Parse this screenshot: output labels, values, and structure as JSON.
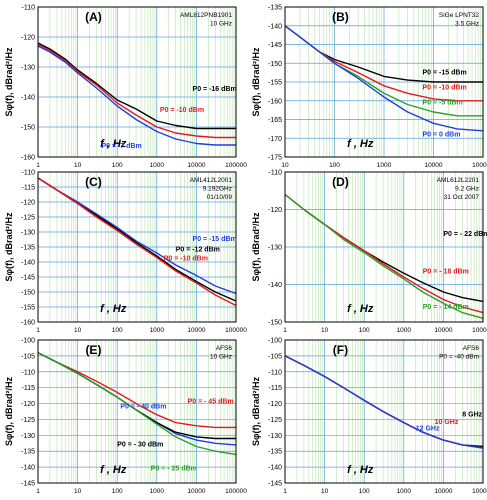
{
  "chart_data": [
    {
      "type": "line",
      "panel_label": "(A)",
      "info": [
        "AML812PNB1901",
        "10 GHz"
      ],
      "xlabel": "f , Hz",
      "ylabel": "Sφ(f), dBrad²/Hz",
      "x_scale": "log",
      "xlim": [
        1,
        100000
      ],
      "ylim": [
        -160,
        -110
      ],
      "yticks": [
        -160,
        -150,
        -140,
        -130,
        -120,
        -110
      ],
      "xticks": [
        "1",
        "10",
        "100",
        "1000",
        "10000",
        "100000"
      ],
      "grid": true,
      "series": [
        {
          "name": "P0 = -16 dBm",
          "color": "#000000",
          "x": [
            1,
            2,
            5,
            10,
            30,
            100,
            300,
            1000,
            3000,
            10000,
            30000,
            100000
          ],
          "y": [
            -122,
            -124,
            -127.5,
            -131,
            -135.5,
            -141,
            -144,
            -148,
            -149.5,
            -150.5,
            -150.5,
            -150.5
          ]
        },
        {
          "name": "P0 = -10 dBm",
          "color": "#e31a1c",
          "x": [
            1,
            2,
            5,
            10,
            30,
            100,
            300,
            1000,
            3000,
            10000,
            30000,
            100000
          ],
          "y": [
            -122.5,
            -124.5,
            -128,
            -131.5,
            -136,
            -142,
            -146,
            -150,
            -152,
            -153,
            -153.5,
            -153.5
          ]
        },
        {
          "name": "P0 = -7 dBm",
          "color": "#1f3fe0",
          "x": [
            1,
            2,
            5,
            10,
            30,
            100,
            300,
            1000,
            3000,
            10000,
            30000,
            100000
          ],
          "y": [
            -123,
            -125,
            -128.5,
            -132,
            -137,
            -143,
            -147.5,
            -151.5,
            -154,
            -155.5,
            -156,
            -156
          ]
        }
      ],
      "annotations": [
        {
          "text": "P0 = -16 dBm",
          "x": 8000,
          "y": -138,
          "color": "#000000"
        },
        {
          "text": "P0 = -10 dBm",
          "x": 1200,
          "y": -145,
          "color": "#e31a1c"
        },
        {
          "text": "P0 = -7 dBm",
          "x": 40,
          "y": -157,
          "color": "#1f3fe0"
        }
      ]
    },
    {
      "type": "line",
      "panel_label": "(B)",
      "info": [
        "SiGe LPNT32",
        "3.5 GHz"
      ],
      "xlabel": "f , Hz",
      "ylabel": "Sφ(f), dBrad²/Hz",
      "x_scale": "log",
      "xlim": [
        10,
        100000
      ],
      "ylim": [
        -175,
        -135
      ],
      "yticks": [
        -175,
        -170,
        -165,
        -160,
        -155,
        -150,
        -145,
        -140,
        -135
      ],
      "xticks": [
        "10",
        "100",
        "1000",
        "10000",
        "100000"
      ],
      "grid": true,
      "series": [
        {
          "name": "P0 = -15 dBm",
          "color": "#000000",
          "x": [
            10,
            20,
            50,
            100,
            300,
            1000,
            3000,
            10000,
            30000,
            100000
          ],
          "y": [
            -140,
            -143,
            -147,
            -149,
            -151,
            -153.5,
            -154.5,
            -155,
            -155,
            -155
          ]
        },
        {
          "name": "P0 = -10 dBm",
          "color": "#e31a1c",
          "x": [
            10,
            20,
            50,
            100,
            300,
            1000,
            3000,
            10000,
            30000,
            100000
          ],
          "y": [
            -140,
            -143,
            -147,
            -149.5,
            -152.5,
            -156,
            -158,
            -159.5,
            -160,
            -160
          ]
        },
        {
          "name": "P0 = -5 dBm",
          "color": "#2ca02c",
          "x": [
            10,
            20,
            50,
            100,
            300,
            1000,
            3000,
            10000,
            30000,
            100000
          ],
          "y": [
            -140,
            -143,
            -147,
            -150,
            -153.5,
            -158,
            -161,
            -163,
            -164,
            -164
          ]
        },
        {
          "name": "P0 = 0 dBm",
          "color": "#1f3fe0",
          "x": [
            10,
            20,
            50,
            100,
            300,
            1000,
            3000,
            10000,
            30000,
            100000
          ],
          "y": [
            -140,
            -143,
            -147,
            -150,
            -154,
            -159,
            -163,
            -166,
            -167.5,
            -168
          ]
        }
      ],
      "annotations": [
        {
          "text": "P0 = -15 dBm",
          "x": 6000,
          "y": -153,
          "color": "#000000"
        },
        {
          "text": "P0 = -10 dBm",
          "x": 6000,
          "y": -157,
          "color": "#e31a1c"
        },
        {
          "text": "P0 = -5 dBm",
          "x": 6000,
          "y": -161,
          "color": "#2ca02c"
        },
        {
          "text": "P0 = 0 dBm",
          "x": 6000,
          "y": -169.5,
          "color": "#1f3fe0"
        }
      ]
    },
    {
      "type": "line",
      "panel_label": "(C)",
      "info": [
        "AML412L2001",
        "9.192GHz",
        "01/10/09"
      ],
      "xlabel": "f , Hz",
      "ylabel": "Sφ(f), dBrad²/Hz",
      "x_scale": "log",
      "xlim": [
        1,
        100000
      ],
      "ylim": [
        -160,
        -110
      ],
      "yticks": [
        -160,
        -155,
        -150,
        -145,
        -140,
        -135,
        -130,
        -125,
        -120,
        -115,
        -110
      ],
      "xticks": [
        "1",
        "10",
        "100",
        "1000",
        "10000",
        "100000"
      ],
      "grid": true,
      "series": [
        {
          "name": "P0 = -15 dBm",
          "color": "#1f3fe0",
          "x": [
            1,
            3,
            10,
            30,
            100,
            300,
            1000,
            3000,
            10000,
            30000,
            100000
          ],
          "y": [
            -112,
            -116,
            -120,
            -124,
            -128.5,
            -133,
            -137,
            -141,
            -144.5,
            -148,
            -150.5
          ]
        },
        {
          "name": "P0 = -12 dBm",
          "color": "#000000",
          "x": [
            1,
            3,
            10,
            30,
            100,
            300,
            1000,
            3000,
            10000,
            30000,
            100000
          ],
          "y": [
            -112,
            -116,
            -120.5,
            -124.5,
            -129,
            -133.5,
            -138,
            -142.5,
            -146.5,
            -150,
            -153
          ]
        },
        {
          "name": "P0 = -10 dBm",
          "color": "#e31a1c",
          "x": [
            1,
            3,
            10,
            30,
            100,
            300,
            1000,
            3000,
            10000,
            30000,
            100000
          ],
          "y": [
            -112,
            -116,
            -120.5,
            -125,
            -129.5,
            -134,
            -138.5,
            -143,
            -147,
            -151,
            -154.5
          ]
        }
      ],
      "annotations": [
        {
          "text": "P0 = -15 dBm",
          "x": 8000,
          "y": -133,
          "color": "#1f3fe0"
        },
        {
          "text": "P0 = -12 dBm",
          "x": 3000,
          "y": -136.5,
          "color": "#000000"
        },
        {
          "text": "P0 = -10 dBm",
          "x": 1500,
          "y": -139.5,
          "color": "#e31a1c"
        }
      ]
    },
    {
      "type": "line",
      "panel_label": "(D)",
      "info": [
        "AML612L2201",
        "9.2 GHz",
        "31 Oct 2007"
      ],
      "xlabel": "f , Hz",
      "ylabel": "Sφ(f), dBrad²/Hz",
      "x_scale": "log",
      "xlim": [
        1,
        100000
      ],
      "ylim": [
        -150,
        -110
      ],
      "yticks": [
        -150,
        -140,
        -130,
        -120,
        -110
      ],
      "xticks": [
        "1",
        "10",
        "100",
        "1000",
        "10000",
        "100000"
      ],
      "grid": true,
      "series": [
        {
          "name": "P0 = - 22 dBm",
          "color": "#000000",
          "x": [
            1,
            3,
            10,
            30,
            100,
            300,
            1000,
            3000,
            10000,
            30000,
            100000
          ],
          "y": [
            -116,
            -120,
            -124,
            -127.5,
            -131,
            -134,
            -137,
            -139.5,
            -142,
            -143.5,
            -144.5
          ]
        },
        {
          "name": "P0 = - 18 dBm",
          "color": "#e31a1c",
          "x": [
            1,
            3,
            10,
            30,
            100,
            300,
            1000,
            3000,
            10000,
            30000,
            100000
          ],
          "y": [
            -116,
            -120,
            -124,
            -127.5,
            -131,
            -134.5,
            -138,
            -141,
            -144,
            -146,
            -147.5
          ]
        },
        {
          "name": "P0 = - 14 dBm",
          "color": "#2ca02c",
          "x": [
            1,
            3,
            10,
            30,
            100,
            300,
            1000,
            3000,
            10000,
            30000,
            100000
          ],
          "y": [
            -116,
            -120,
            -124,
            -128,
            -131.5,
            -135,
            -138.5,
            -142,
            -145,
            -147.5,
            -149
          ]
        }
      ],
      "annotations": [
        {
          "text": "P0 = - 22 dBm",
          "x": 10000,
          "y": -127,
          "color": "#000000"
        },
        {
          "text": "P0 = - 18 dBm",
          "x": 3000,
          "y": -137,
          "color": "#e31a1c"
        },
        {
          "text": "P0 = - 14 dBm",
          "x": 3000,
          "y": -146.5,
          "color": "#2ca02c"
        }
      ]
    },
    {
      "type": "line",
      "panel_label": "(E)",
      "info": [
        "AFS6",
        "10 GHz"
      ],
      "xlabel": "f , Hz",
      "ylabel": "Sφ(f), dBrad²/Hz",
      "x_scale": "log",
      "xlim": [
        1,
        100000
      ],
      "ylim": [
        -145,
        -100
      ],
      "yticks": [
        -145,
        -140,
        -135,
        -130,
        -125,
        -120,
        -115,
        -110,
        -105,
        -100
      ],
      "xticks": [
        "1",
        "10",
        "100",
        "1000",
        "10000",
        "100000"
      ],
      "grid": true,
      "series": [
        {
          "name": "P0 = - 45 dBm",
          "color": "#e31a1c",
          "x": [
            1,
            3,
            10,
            30,
            100,
            300,
            1000,
            3000,
            10000,
            30000,
            100000
          ],
          "y": [
            -104,
            -107,
            -110,
            -113,
            -116.5,
            -120,
            -123.5,
            -126,
            -127,
            -127.5,
            -127.5
          ]
        },
        {
          "name": "P0 = - 40 dBm",
          "color": "#1f3fe0",
          "x": [
            1,
            3,
            10,
            30,
            100,
            300,
            1000,
            3000,
            10000,
            30000,
            100000
          ],
          "y": [
            -104,
            -107,
            -110.5,
            -114,
            -118,
            -122,
            -126,
            -129.5,
            -131.5,
            -132.5,
            -133
          ]
        },
        {
          "name": "P0 = - 30 dBm",
          "color": "#000000",
          "x": [
            1,
            3,
            10,
            30,
            100,
            300,
            1000,
            3000,
            10000,
            30000,
            100000
          ],
          "y": [
            -104,
            -107,
            -110.5,
            -114,
            -118,
            -122,
            -126,
            -129,
            -130.5,
            -131,
            -131
          ]
        },
        {
          "name": "P0 = - 25 dBm",
          "color": "#2ca02c",
          "x": [
            1,
            3,
            10,
            30,
            100,
            300,
            1000,
            3000,
            10000,
            30000,
            100000
          ],
          "y": [
            -104,
            -107,
            -110.5,
            -114,
            -118,
            -122,
            -126.5,
            -130.5,
            -133.5,
            -135,
            -136
          ]
        }
      ],
      "annotations": [
        {
          "text": "P0 = - 45 dBm",
          "x": 6000,
          "y": -120,
          "color": "#e31a1c"
        },
        {
          "text": "P0 = - 40 dBm",
          "x": 120,
          "y": -121.5,
          "color": "#1f3fe0"
        },
        {
          "text": "P0 = - 30 dBm",
          "x": 100,
          "y": -133.5,
          "color": "#000000"
        },
        {
          "text": "P0 = - 25 dBm",
          "x": 700,
          "y": -141,
          "color": "#2ca02c"
        }
      ]
    },
    {
      "type": "line",
      "panel_label": "(F)",
      "info": [
        "AFS6",
        "P0 = -40 dBm"
      ],
      "xlabel": "f , Hz",
      "ylabel": "Sφ(f), dBrad²/Hz",
      "x_scale": "log",
      "xlim": [
        1,
        100000
      ],
      "ylim": [
        -145,
        -100
      ],
      "yticks": [
        -145,
        -140,
        -135,
        -130,
        -125,
        -120,
        -115,
        -110,
        -105,
        -100
      ],
      "xticks": [
        "1",
        "10",
        "100",
        "1000",
        "10000",
        "100000"
      ],
      "grid": true,
      "series": [
        {
          "name": "8 GHz",
          "color": "#000000",
          "x": [
            1,
            3,
            10,
            30,
            100,
            300,
            1000,
            3000,
            10000,
            30000,
            100000
          ],
          "y": [
            -105,
            -108,
            -111.5,
            -115,
            -119,
            -122.5,
            -126,
            -129,
            -131.5,
            -133,
            -133.5
          ]
        },
        {
          "name": "10 GHz",
          "color": "#e31a1c",
          "x": [
            1,
            3,
            10,
            30,
            100,
            300,
            1000,
            3000,
            10000,
            30000,
            100000
          ],
          "y": [
            -105,
            -108,
            -111.5,
            -115,
            -119,
            -122.5,
            -126,
            -129,
            -131.5,
            -133,
            -134
          ]
        },
        {
          "name": "12 GHz",
          "color": "#1f3fe0",
          "x": [
            1,
            3,
            10,
            30,
            100,
            300,
            1000,
            3000,
            10000,
            30000,
            100000
          ],
          "y": [
            -105,
            -108,
            -111.5,
            -115,
            -119,
            -122.5,
            -126,
            -129,
            -131.5,
            -133,
            -134
          ]
        }
      ],
      "annotations": [
        {
          "text": "8 GHz",
          "x": 30000,
          "y": -124,
          "color": "#000000"
        },
        {
          "text": "10 GHz",
          "x": 6000,
          "y": -126.5,
          "color": "#e31a1c"
        },
        {
          "text": "12 GHz",
          "x": 2000,
          "y": -128.5,
          "color": "#1f3fe0"
        }
      ]
    }
  ]
}
